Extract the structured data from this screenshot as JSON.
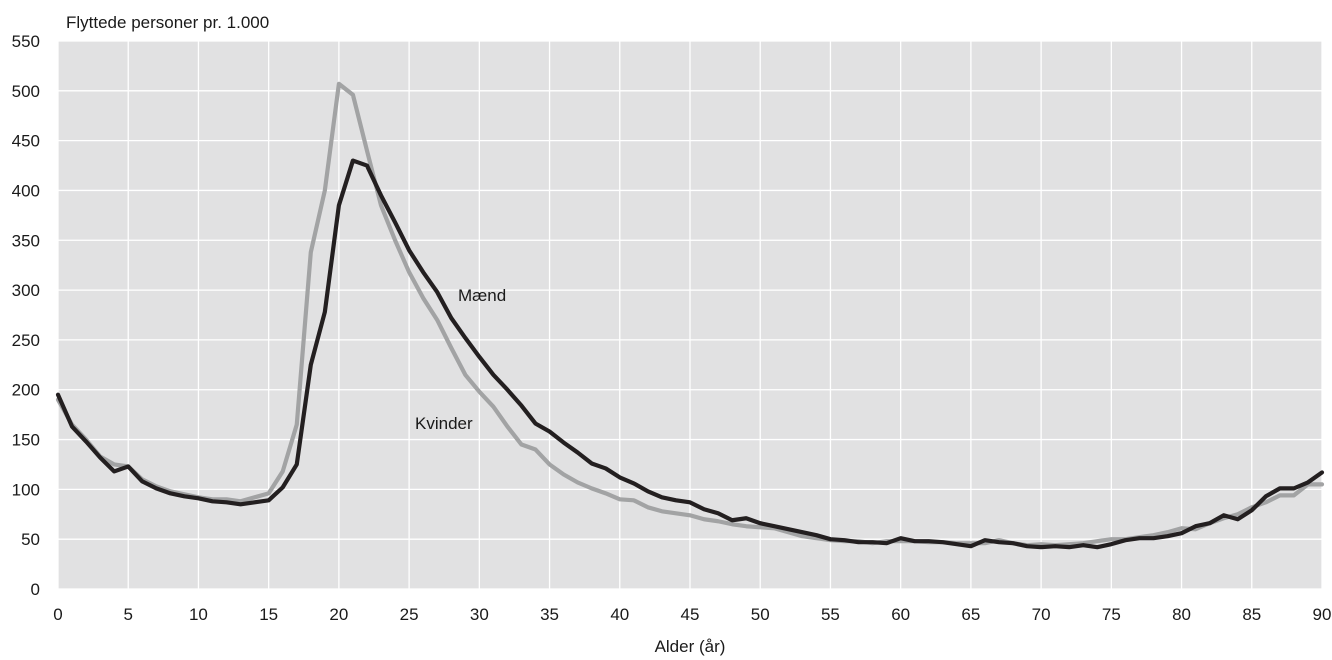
{
  "chart_data": {
    "type": "line",
    "title": "",
    "ylabel": "Flyttede personer pr. 1.000",
    "xlabel": "Alder (år)",
    "xlim": [
      0,
      90
    ],
    "ylim": [
      0,
      550
    ],
    "xticks": [
      "0",
      "5",
      "10",
      "15",
      "20",
      "25",
      "30",
      "35",
      "40",
      "45",
      "50",
      "55",
      "60",
      "65",
      "70",
      "75",
      "80",
      "85",
      "90"
    ],
    "yticks": [
      "0",
      "50",
      "100",
      "150",
      "200",
      "250",
      "300",
      "350",
      "400",
      "450",
      "500",
      "550"
    ],
    "grid": true,
    "background_color": "#e1e1e2",
    "x": [
      0,
      1,
      2,
      3,
      4,
      5,
      6,
      7,
      8,
      9,
      10,
      11,
      12,
      13,
      14,
      15,
      16,
      17,
      18,
      19,
      20,
      21,
      22,
      23,
      24,
      25,
      26,
      27,
      28,
      29,
      30,
      31,
      32,
      33,
      34,
      35,
      36,
      37,
      38,
      39,
      40,
      41,
      42,
      43,
      44,
      45,
      46,
      47,
      48,
      49,
      50,
      51,
      52,
      53,
      54,
      55,
      56,
      57,
      58,
      59,
      60,
      61,
      62,
      63,
      64,
      65,
      66,
      67,
      68,
      69,
      70,
      71,
      72,
      73,
      74,
      75,
      76,
      77,
      78,
      79,
      80,
      81,
      82,
      83,
      84,
      85,
      86,
      87,
      88,
      89,
      90
    ],
    "series": [
      {
        "name": "Mænd",
        "color": "#231f20",
        "values": [
          195,
          163,
          148,
          132,
          118,
          123,
          108,
          101,
          96,
          93,
          91,
          88,
          87,
          85,
          87,
          89,
          102,
          125,
          225,
          278,
          385,
          430,
          425,
          395,
          368,
          340,
          318,
          298,
          272,
          252,
          233,
          215,
          200,
          184,
          166,
          158,
          147,
          137,
          126,
          121,
          112,
          106,
          98,
          92,
          89,
          87,
          80,
          76,
          69,
          71,
          66,
          63,
          60,
          57,
          54,
          50,
          49,
          47,
          47,
          46,
          51,
          48,
          48,
          47,
          45,
          43,
          49,
          47,
          46,
          43,
          42,
          43,
          42,
          44,
          42,
          45,
          49,
          51,
          51,
          53,
          56,
          63,
          66,
          74,
          70,
          79,
          93,
          101,
          101,
          107,
          117
        ]
      },
      {
        "name": "Kvinder",
        "color": "#a2a3a4",
        "values": [
          190,
          165,
          150,
          133,
          125,
          123,
          110,
          103,
          98,
          95,
          92,
          90,
          90,
          88,
          92,
          96,
          118,
          165,
          338,
          400,
          507,
          496,
          440,
          385,
          350,
          318,
          292,
          270,
          242,
          215,
          198,
          183,
          163,
          145,
          140,
          125,
          115,
          107,
          101,
          96,
          90,
          89,
          82,
          78,
          76,
          74,
          70,
          68,
          65,
          63,
          62,
          61,
          57,
          53,
          51,
          49,
          48,
          48,
          46,
          48,
          48,
          48,
          47,
          47,
          46,
          46,
          46,
          49,
          46,
          44,
          45,
          44,
          45,
          46,
          48,
          50,
          50,
          52,
          54,
          57,
          61,
          60,
          66,
          71,
          75,
          82,
          87,
          94,
          94,
          105,
          105
        ]
      }
    ]
  }
}
